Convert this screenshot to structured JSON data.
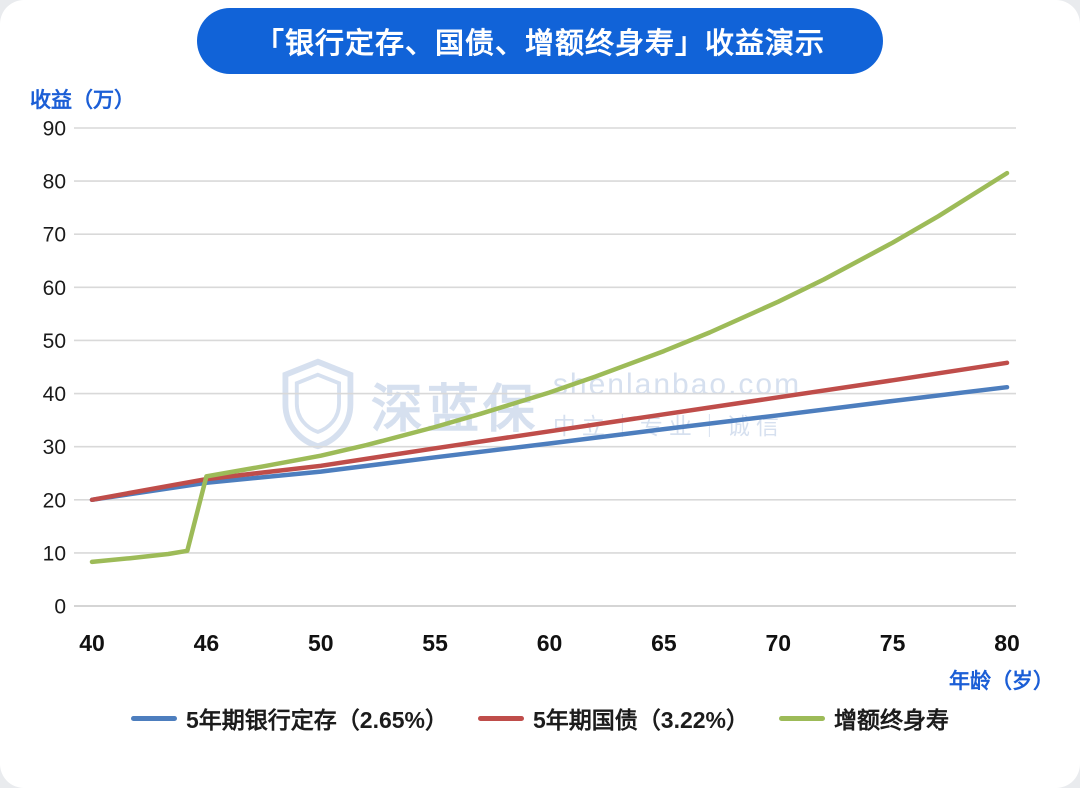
{
  "page": {
    "title": "「银行定存、国债、增额终身寿」收益演示",
    "title_bg": "#1163d8",
    "y_axis_title": "收益（万）",
    "x_axis_title": "年龄（岁）",
    "axis_title_color": "#1b5ed6"
  },
  "watermark": {
    "brand": "深蓝保",
    "site": "shenlanbao.com",
    "slogan": "中立｜专业｜诚信",
    "color": "#9fb6da"
  },
  "chart_data": {
    "type": "line",
    "title": "「银行定存、国债、增额终身寿」收益演示",
    "xlabel": "年龄（岁）",
    "ylabel": "收益（万）",
    "x_ticks": [
      40,
      46,
      50,
      55,
      60,
      65,
      70,
      75,
      80
    ],
    "y_ticks": [
      0,
      10,
      20,
      30,
      40,
      50,
      60,
      70,
      80,
      90
    ],
    "ylim": [
      0,
      90
    ],
    "grid": true,
    "legend_position": "bottom",
    "grid_color": "#d9d9d9",
    "series": [
      {
        "name": "5年期银行定存（2.65%）",
        "color": "#4d7ebe",
        "points": [
          [
            40,
            20.0
          ],
          [
            46,
            23.2
          ],
          [
            50,
            25.3
          ],
          [
            55,
            28.0
          ],
          [
            60,
            30.6
          ],
          [
            65,
            33.3
          ],
          [
            70,
            35.9
          ],
          [
            75,
            38.6
          ],
          [
            80,
            41.2
          ]
        ]
      },
      {
        "name": "5年期国债（3.22%）",
        "color": "#bf4d4a",
        "points": [
          [
            40,
            20.0
          ],
          [
            46,
            23.9
          ],
          [
            50,
            26.4
          ],
          [
            55,
            29.7
          ],
          [
            60,
            32.9
          ],
          [
            65,
            36.1
          ],
          [
            70,
            39.3
          ],
          [
            75,
            42.5
          ],
          [
            80,
            45.8
          ]
        ]
      },
      {
        "name": "增额终身寿",
        "color": "#9dbb58",
        "points": [
          [
            40,
            8.3
          ],
          [
            42,
            9.0
          ],
          [
            44,
            9.8
          ],
          [
            45,
            10.4
          ],
          [
            46,
            24.4
          ],
          [
            48,
            26.3
          ],
          [
            50,
            28.3
          ],
          [
            52,
            30.3
          ],
          [
            55,
            33.7
          ],
          [
            57,
            36.2
          ],
          [
            60,
            40.2
          ],
          [
            62,
            43.2
          ],
          [
            65,
            48.0
          ],
          [
            67,
            51.5
          ],
          [
            70,
            57.3
          ],
          [
            72,
            61.5
          ],
          [
            75,
            68.4
          ],
          [
            77,
            73.4
          ],
          [
            80,
            81.5
          ]
        ]
      }
    ]
  }
}
